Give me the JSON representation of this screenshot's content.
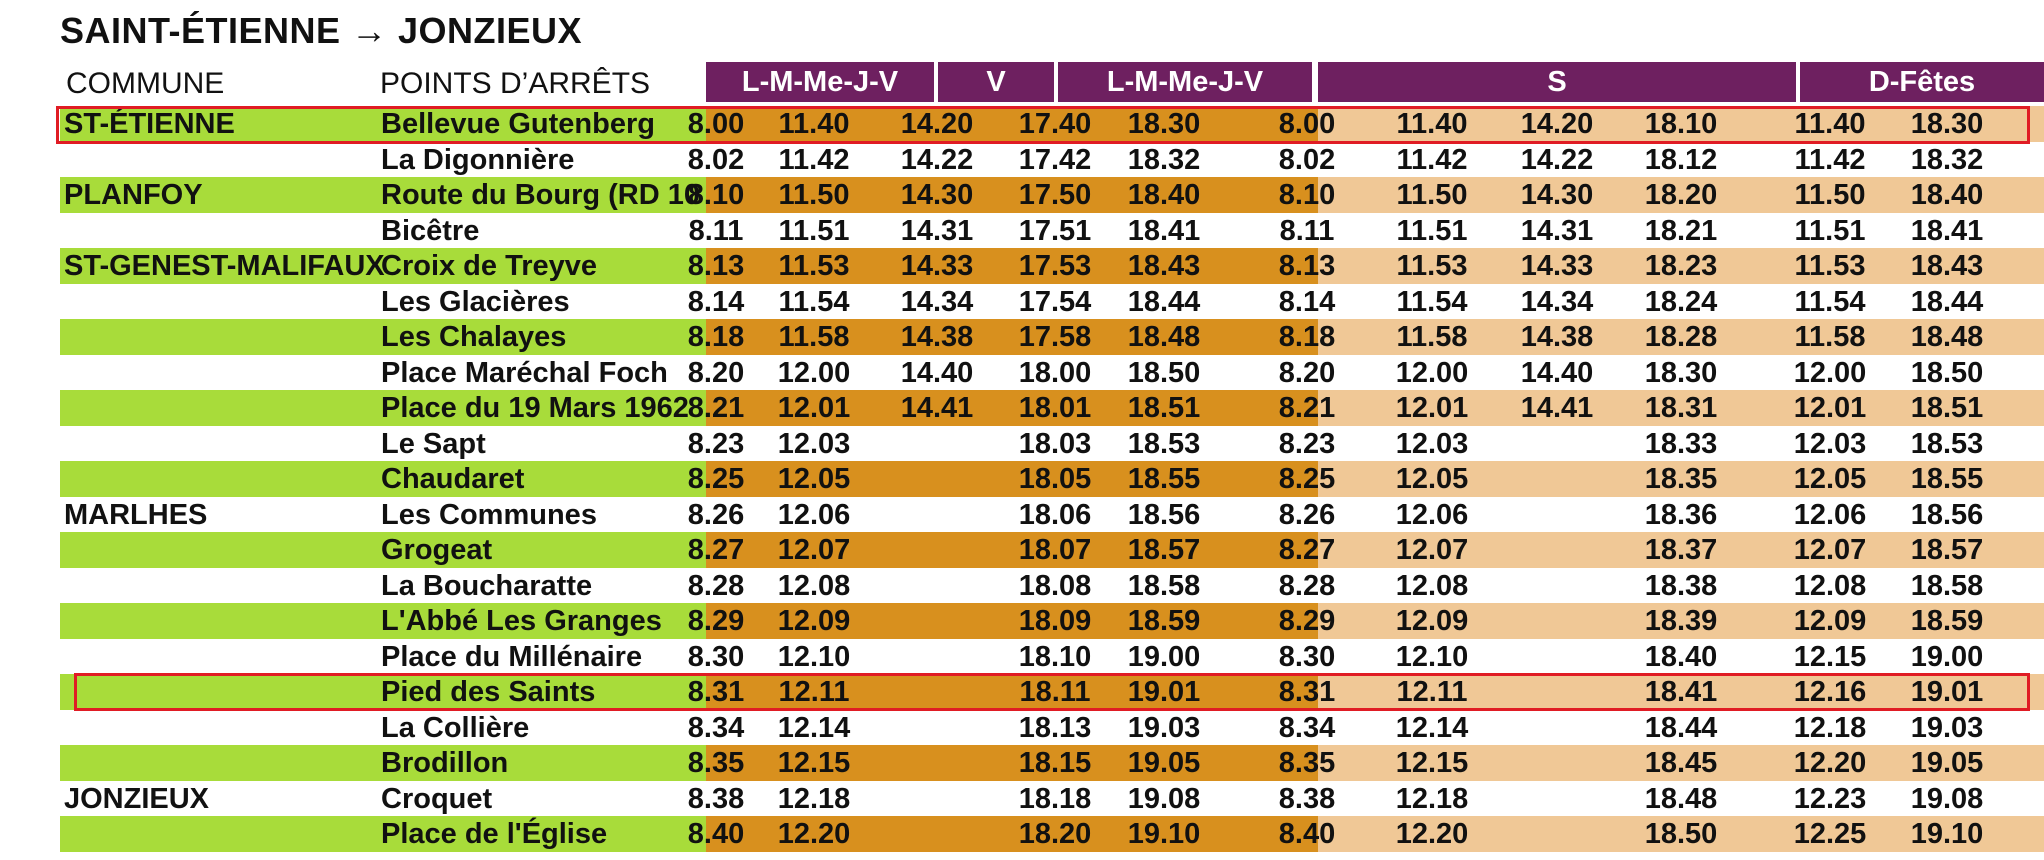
{
  "title": "SAINT-ÉTIENNE → JONZIEUX",
  "headers": {
    "commune": "COMMUNE",
    "stops": "POINTS D’ARRÊTS",
    "days": [
      "L-M-Me-J-V",
      "V",
      "L-M-Me-J-V",
      "S",
      "D-Fêtes"
    ]
  },
  "colors": {
    "header_purple": "#6e2060",
    "row_green": "#a8dc3a",
    "weekday_orange": "#d8901e",
    "weekend_tan": "#f0c896",
    "highlight_red": "#e01c24"
  },
  "rows": [
    {
      "commune": "ST-ÉTIENNE",
      "stop": "Bellevue Gutenberg",
      "times": [
        "8.00",
        "11.40",
        "14.20",
        "17.40",
        "18.30",
        "8.00",
        "11.40",
        "14.20",
        "18.10",
        "11.40",
        "18.30"
      ]
    },
    {
      "commune": "",
      "stop": "La Digonnière",
      "times": [
        "8.02",
        "11.42",
        "14.22",
        "17.42",
        "18.32",
        "8.02",
        "11.42",
        "14.22",
        "18.12",
        "11.42",
        "18.32"
      ]
    },
    {
      "commune": "PLANFOY",
      "stop": "Route du Bourg (RD 10",
      "times": [
        "8.10",
        "11.50",
        "14.30",
        "17.50",
        "18.40",
        "8.10",
        "11.50",
        "14.30",
        "18.20",
        "11.50",
        "18.40"
      ]
    },
    {
      "commune": "",
      "stop": "Bicêtre",
      "times": [
        "8.11",
        "11.51",
        "14.31",
        "17.51",
        "18.41",
        "8.11",
        "11.51",
        "14.31",
        "18.21",
        "11.51",
        "18.41"
      ]
    },
    {
      "commune": "ST-GENEST-MALIFAUX",
      "stop": "Croix de Treyve",
      "times": [
        "8.13",
        "11.53",
        "14.33",
        "17.53",
        "18.43",
        "8.13",
        "11.53",
        "14.33",
        "18.23",
        "11.53",
        "18.43"
      ]
    },
    {
      "commune": "",
      "stop": "Les Glacières",
      "times": [
        "8.14",
        "11.54",
        "14.34",
        "17.54",
        "18.44",
        "8.14",
        "11.54",
        "14.34",
        "18.24",
        "11.54",
        "18.44"
      ]
    },
    {
      "commune": "",
      "stop": "Les Chalayes",
      "times": [
        "8.18",
        "11.58",
        "14.38",
        "17.58",
        "18.48",
        "8.18",
        "11.58",
        "14.38",
        "18.28",
        "11.58",
        "18.48"
      ]
    },
    {
      "commune": "",
      "stop": "Place Maréchal Foch",
      "times": [
        "8.20",
        "12.00",
        "14.40",
        "18.00",
        "18.50",
        "8.20",
        "12.00",
        "14.40",
        "18.30",
        "12.00",
        "18.50"
      ]
    },
    {
      "commune": "",
      "stop": "Place du 19 Mars 1962",
      "times": [
        "8.21",
        "12.01",
        "14.41",
        "18.01",
        "18.51",
        "8.21",
        "12.01",
        "14.41",
        "18.31",
        "12.01",
        "18.51"
      ]
    },
    {
      "commune": "",
      "stop": "Le Sapt",
      "times": [
        "8.23",
        "12.03",
        "",
        "18.03",
        "18.53",
        "8.23",
        "12.03",
        "",
        "18.33",
        "12.03",
        "18.53"
      ]
    },
    {
      "commune": "",
      "stop": "Chaudaret",
      "times": [
        "8.25",
        "12.05",
        "",
        "18.05",
        "18.55",
        "8.25",
        "12.05",
        "",
        "18.35",
        "12.05",
        "18.55"
      ]
    },
    {
      "commune": "MARLHES",
      "stop": "Les Communes",
      "times": [
        "8.26",
        "12.06",
        "",
        "18.06",
        "18.56",
        "8.26",
        "12.06",
        "",
        "18.36",
        "12.06",
        "18.56"
      ]
    },
    {
      "commune": "",
      "stop": "Grogeat",
      "times": [
        "8.27",
        "12.07",
        "",
        "18.07",
        "18.57",
        "8.27",
        "12.07",
        "",
        "18.37",
        "12.07",
        "18.57"
      ]
    },
    {
      "commune": "",
      "stop": "La Boucharatte",
      "times": [
        "8.28",
        "12.08",
        "",
        "18.08",
        "18.58",
        "8.28",
        "12.08",
        "",
        "18.38",
        "12.08",
        "18.58"
      ]
    },
    {
      "commune": "",
      "stop": "L'Abbé Les Granges",
      "times": [
        "8.29",
        "12.09",
        "",
        "18.09",
        "18.59",
        "8.29",
        "12.09",
        "",
        "18.39",
        "12.09",
        "18.59"
      ]
    },
    {
      "commune": "",
      "stop": "Place du Millénaire",
      "times": [
        "8.30",
        "12.10",
        "",
        "18.10",
        "19.00",
        "8.30",
        "12.10",
        "",
        "18.40",
        "12.15",
        "19.00"
      ]
    },
    {
      "commune": "",
      "stop": "Pied des Saints",
      "times": [
        "8.31",
        "12.11",
        "",
        "18.11",
        "19.01",
        "8.31",
        "12.11",
        "",
        "18.41",
        "12.16",
        "19.01"
      ]
    },
    {
      "commune": "",
      "stop": "La Collière",
      "times": [
        "8.34",
        "12.14",
        "",
        "18.13",
        "19.03",
        "8.34",
        "12.14",
        "",
        "18.44",
        "12.18",
        "19.03"
      ]
    },
    {
      "commune": "",
      "stop": "Brodillon",
      "times": [
        "8.35",
        "12.15",
        "",
        "18.15",
        "19.05",
        "8.35",
        "12.15",
        "",
        "18.45",
        "12.20",
        "19.05"
      ]
    },
    {
      "commune": "JONZIEUX",
      "stop": "Croquet",
      "times": [
        "8.38",
        "12.18",
        "",
        "18.18",
        "19.08",
        "8.38",
        "12.18",
        "",
        "18.48",
        "12.23",
        "19.08"
      ]
    },
    {
      "commune": "",
      "stop": "Place de l'Église",
      "times": [
        "8.40",
        "12.20",
        "",
        "18.20",
        "19.10",
        "8.40",
        "12.20",
        "",
        "18.50",
        "12.25",
        "19.10"
      ]
    }
  ],
  "highlighted_stops": [
    "Bellevue Gutenberg",
    "Pied des Saints"
  ]
}
